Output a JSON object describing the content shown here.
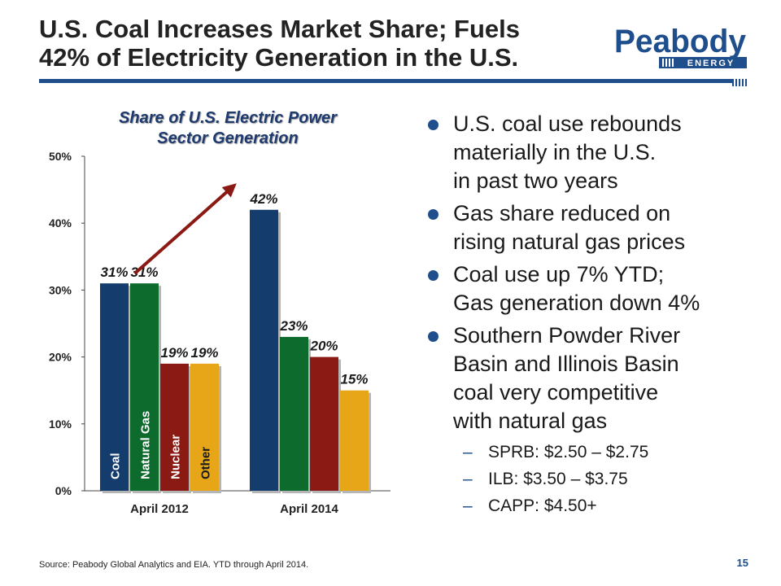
{
  "slide": {
    "title_lines": [
      "U.S. Coal Increases Market Share; Fuels",
      "42% of Electricity Generation in the U.S."
    ],
    "logo": {
      "name": "Peabody",
      "sub": "ENERGY"
    },
    "bullets": [
      {
        "lines": [
          "U.S. coal use rebounds",
          "materially in the U.S.",
          "in past two years"
        ]
      },
      {
        "lines": [
          "Gas share reduced on",
          "rising natural gas prices"
        ]
      },
      {
        "lines": [
          "Coal use up 7% YTD;",
          "Gas generation down 4%"
        ]
      },
      {
        "lines": [
          "Southern Powder River",
          "Basin and Illinois Basin",
          "coal very competitive",
          "with natural gas"
        ]
      }
    ],
    "sub_bullets": [
      "SPRB:  $2.50 – $2.75",
      "ILB:  $3.50 – $3.75",
      "CAPP:  $4.50+"
    ],
    "footer": "Source:  Peabody Global Analytics and EIA. YTD through April 2014.",
    "page_number": "15",
    "colors": {
      "brand_blue": "#1f4e8c",
      "coal": "#143d6e",
      "natural_gas": "#0e6b2e",
      "nuclear": "#8b1a14",
      "other": "#e6a617",
      "arrow": "#8b1a14"
    }
  },
  "chart_data": {
    "type": "bar",
    "title_lines": [
      "Share of U.S. Electric Power",
      "Sector Generation"
    ],
    "categories": [
      "April 2012",
      "April 2014"
    ],
    "series": [
      {
        "name": "Coal",
        "values": [
          31,
          42
        ]
      },
      {
        "name": "Natural Gas",
        "values": [
          31,
          23
        ]
      },
      {
        "name": "Nuclear",
        "values": [
          19,
          20
        ]
      },
      {
        "name": "Other",
        "values": [
          19,
          15
        ]
      }
    ],
    "data_labels": [
      [
        "31%",
        "42%"
      ],
      [
        "31%",
        "23%"
      ],
      [
        "19%",
        "20%"
      ],
      [
        "19%",
        "15%"
      ]
    ],
    "ylim": [
      0,
      50
    ],
    "yticks": [
      "0%",
      "10%",
      "20%",
      "30%",
      "40%",
      "50%"
    ],
    "legend": "series names printed vertically inside April 2012 bars",
    "grid": false,
    "annotation": "upward trend arrow from April 2012 coal bar to April 2014 coal bar"
  }
}
